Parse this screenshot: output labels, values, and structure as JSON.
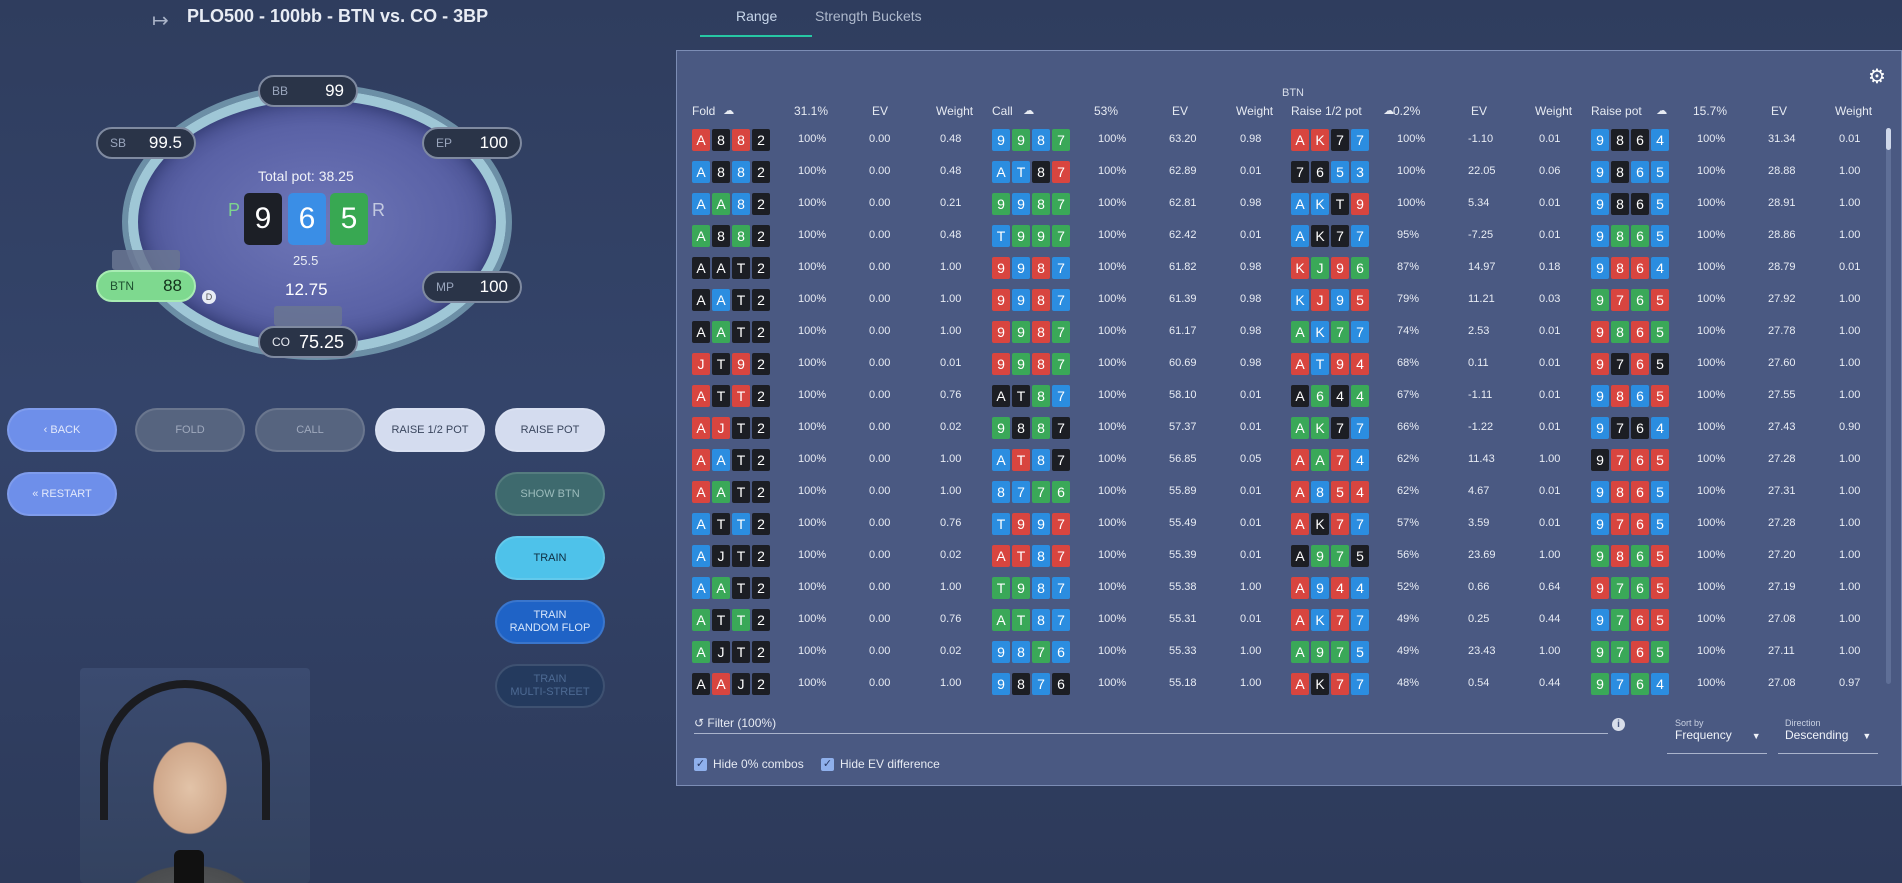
{
  "header": {
    "title": "PLO500 - 100bb - BTN vs. CO - 3BP",
    "icon": "enter-icon"
  },
  "tabs": [
    {
      "label": "Range"
    },
    {
      "label": "Strength Buckets"
    }
  ],
  "table": {
    "seats": {
      "bb": {
        "pos": "BB",
        "stack": "99"
      },
      "sb": {
        "pos": "SB",
        "stack": "99.5"
      },
      "ep": {
        "pos": "EP",
        "stack": "100"
      },
      "mp": {
        "pos": "MP",
        "stack": "100"
      },
      "co": {
        "pos": "CO",
        "stack": "75.25"
      },
      "btn": {
        "pos": "BTN",
        "stack": "88"
      }
    },
    "pot_label": "Total pot: 38.25",
    "board": [
      "9",
      "6",
      "5"
    ],
    "board_suits": [
      "d",
      "h",
      "c"
    ],
    "side_p": "P",
    "side_r": "R",
    "btn_bet": "25.5",
    "co_bet": "12.75",
    "dealer": "D"
  },
  "buttons": {
    "back": "BACK",
    "restart": "RESTART",
    "fold": "FOLD",
    "call": "CALL",
    "raise_half": "RAISE 1/2 POT",
    "raise_pot": "RAISE POT",
    "show_btn": "SHOW BTN",
    "train": "TRAIN",
    "train_random_1": "TRAIN",
    "train_random_2": "RANDOM FLOP",
    "train_multi_1": "TRAIN",
    "train_multi_2": "MULTI-STREET"
  },
  "range": {
    "player": "BTN",
    "colors": {
      "s": "#d8453f",
      "h": "#2b8de0",
      "c": "#3aa858",
      "d": "#1c1e24"
    },
    "groups": [
      {
        "name": "Fold",
        "pct": "31.1%",
        "ev_label": "EV",
        "weight_label": "Weight",
        "rows": [
          {
            "cards": [
              "As",
              "8d",
              "8s",
              "2d"
            ],
            "freq": "100%",
            "ev": "0.00",
            "weight": "0.48"
          },
          {
            "cards": [
              "Ah",
              "8d",
              "8h",
              "2d"
            ],
            "freq": "100%",
            "ev": "0.00",
            "weight": "0.48"
          },
          {
            "cards": [
              "Ah",
              "Ac",
              "8h",
              "2d"
            ],
            "freq": "100%",
            "ev": "0.00",
            "weight": "0.21"
          },
          {
            "cards": [
              "Ac",
              "8d",
              "8c",
              "2d"
            ],
            "freq": "100%",
            "ev": "0.00",
            "weight": "0.48"
          },
          {
            "cards": [
              "Ad",
              "Ad",
              "Td",
              "2d"
            ],
            "freq": "100%",
            "ev": "0.00",
            "weight": "1.00"
          },
          {
            "cards": [
              "Ad",
              "Ah",
              "Td",
              "2d"
            ],
            "freq": "100%",
            "ev": "0.00",
            "weight": "1.00"
          },
          {
            "cards": [
              "Ad",
              "Ac",
              "Td",
              "2d"
            ],
            "freq": "100%",
            "ev": "0.00",
            "weight": "1.00"
          },
          {
            "cards": [
              "Js",
              "Td",
              "9s",
              "2d"
            ],
            "freq": "100%",
            "ev": "0.00",
            "weight": "0.01"
          },
          {
            "cards": [
              "As",
              "Td",
              "Ts",
              "2d"
            ],
            "freq": "100%",
            "ev": "0.00",
            "weight": "0.76"
          },
          {
            "cards": [
              "As",
              "Js",
              "Td",
              "2d"
            ],
            "freq": "100%",
            "ev": "0.00",
            "weight": "0.02"
          },
          {
            "cards": [
              "As",
              "Ah",
              "Td",
              "2d"
            ],
            "freq": "100%",
            "ev": "0.00",
            "weight": "1.00"
          },
          {
            "cards": [
              "As",
              "Ac",
              "Td",
              "2d"
            ],
            "freq": "100%",
            "ev": "0.00",
            "weight": "1.00"
          },
          {
            "cards": [
              "Ah",
              "Td",
              "Th",
              "2d"
            ],
            "freq": "100%",
            "ev": "0.00",
            "weight": "0.76"
          },
          {
            "cards": [
              "Ah",
              "Jd",
              "Td",
              "2d"
            ],
            "freq": "100%",
            "ev": "0.00",
            "weight": "0.02"
          },
          {
            "cards": [
              "Ah",
              "Ac",
              "Td",
              "2d"
            ],
            "freq": "100%",
            "ev": "0.00",
            "weight": "1.00"
          },
          {
            "cards": [
              "Ac",
              "Td",
              "Tc",
              "2d"
            ],
            "freq": "100%",
            "ev": "0.00",
            "weight": "0.76"
          },
          {
            "cards": [
              "Ac",
              "Jd",
              "Td",
              "2d"
            ],
            "freq": "100%",
            "ev": "0.00",
            "weight": "0.02"
          },
          {
            "cards": [
              "Ad",
              "As",
              "Jd",
              "2d"
            ],
            "freq": "100%",
            "ev": "0.00",
            "weight": "1.00"
          }
        ]
      },
      {
        "name": "Call",
        "pct": "53%",
        "ev_label": "EV",
        "weight_label": "Weight",
        "rows": [
          {
            "cards": [
              "9h",
              "9c",
              "8h",
              "7c"
            ],
            "freq": "100%",
            "ev": "63.20",
            "weight": "0.98"
          },
          {
            "cards": [
              "Ah",
              "Th",
              "8d",
              "7s"
            ],
            "freq": "100%",
            "ev": "62.89",
            "weight": "0.01"
          },
          {
            "cards": [
              "9c",
              "9h",
              "8c",
              "7c"
            ],
            "freq": "100%",
            "ev": "62.81",
            "weight": "0.98"
          },
          {
            "cards": [
              "Th",
              "9c",
              "9c",
              "7c"
            ],
            "freq": "100%",
            "ev": "62.42",
            "weight": "0.01"
          },
          {
            "cards": [
              "9s",
              "9h",
              "8s",
              "7h"
            ],
            "freq": "100%",
            "ev": "61.82",
            "weight": "0.98"
          },
          {
            "cards": [
              "9s",
              "9h",
              "8s",
              "7h"
            ],
            "freq": "100%",
            "ev": "61.39",
            "weight": "0.98"
          },
          {
            "cards": [
              "9s",
              "9c",
              "8s",
              "7c"
            ],
            "freq": "100%",
            "ev": "61.17",
            "weight": "0.98"
          },
          {
            "cards": [
              "9s",
              "9c",
              "8s",
              "7c"
            ],
            "freq": "100%",
            "ev": "60.69",
            "weight": "0.98"
          },
          {
            "cards": [
              "Ad",
              "Td",
              "8c",
              "7h"
            ],
            "freq": "100%",
            "ev": "58.10",
            "weight": "0.01"
          },
          {
            "cards": [
              "9c",
              "8d",
              "8c",
              "7d"
            ],
            "freq": "100%",
            "ev": "57.37",
            "weight": "0.01"
          },
          {
            "cards": [
              "Ah",
              "Ts",
              "8h",
              "7d"
            ],
            "freq": "100%",
            "ev": "56.85",
            "weight": "0.05"
          },
          {
            "cards": [
              "8h",
              "7h",
              "7c",
              "6c"
            ],
            "freq": "100%",
            "ev": "55.89",
            "weight": "0.01"
          },
          {
            "cards": [
              "Th",
              "9s",
              "9h",
              "7s"
            ],
            "freq": "100%",
            "ev": "55.49",
            "weight": "0.01"
          },
          {
            "cards": [
              "As",
              "Ts",
              "8h",
              "7s"
            ],
            "freq": "100%",
            "ev": "55.39",
            "weight": "0.01"
          },
          {
            "cards": [
              "Tc",
              "9c",
              "8h",
              "7h"
            ],
            "freq": "100%",
            "ev": "55.38",
            "weight": "1.00"
          },
          {
            "cards": [
              "Ac",
              "Tc",
              "8h",
              "7h"
            ],
            "freq": "100%",
            "ev": "55.31",
            "weight": "0.01"
          },
          {
            "cards": [
              "9h",
              "8h",
              "7c",
              "6h"
            ],
            "freq": "100%",
            "ev": "55.33",
            "weight": "1.00"
          },
          {
            "cards": [
              "9h",
              "8d",
              "7h",
              "6d"
            ],
            "freq": "100%",
            "ev": "55.18",
            "weight": "1.00"
          }
        ]
      },
      {
        "name": "Raise 1/2 pot",
        "pct": "0.2%",
        "ev_label": "EV",
        "weight_label": "Weight",
        "rows": [
          {
            "cards": [
              "As",
              "Ks",
              "7d",
              "7h"
            ],
            "freq": "100%",
            "ev": "-1.10",
            "weight": "0.01"
          },
          {
            "cards": [
              "7d",
              "6d",
              "5h",
              "3h"
            ],
            "freq": "100%",
            "ev": "22.05",
            "weight": "0.06"
          },
          {
            "cards": [
              "Ah",
              "Kh",
              "Td",
              "9s"
            ],
            "freq": "100%",
            "ev": "5.34",
            "weight": "0.01"
          },
          {
            "cards": [
              "Ah",
              "Kd",
              "7d",
              "7h"
            ],
            "freq": "95%",
            "ev": "-7.25",
            "weight": "0.01"
          },
          {
            "cards": [
              "Ks",
              "Jc",
              "9s",
              "6c"
            ],
            "freq": "87%",
            "ev": "14.97",
            "weight": "0.18"
          },
          {
            "cards": [
              "Kh",
              "Js",
              "9h",
              "5s"
            ],
            "freq": "79%",
            "ev": "11.21",
            "weight": "0.03"
          },
          {
            "cards": [
              "Ac",
              "Kh",
              "7c",
              "7h"
            ],
            "freq": "74%",
            "ev": "2.53",
            "weight": "0.01"
          },
          {
            "cards": [
              "As",
              "Th",
              "9s",
              "4s"
            ],
            "freq": "68%",
            "ev": "0.11",
            "weight": "0.01"
          },
          {
            "cards": [
              "Ad",
              "6c",
              "4d",
              "4c"
            ],
            "freq": "67%",
            "ev": "-1.11",
            "weight": "0.01"
          },
          {
            "cards": [
              "Ac",
              "Kc",
              "7d",
              "7h"
            ],
            "freq": "66%",
            "ev": "-1.22",
            "weight": "0.01"
          },
          {
            "cards": [
              "As",
              "Ac",
              "7s",
              "4h"
            ],
            "freq": "62%",
            "ev": "11.43",
            "weight": "1.00"
          },
          {
            "cards": [
              "As",
              "8h",
              "5s",
              "4s"
            ],
            "freq": "62%",
            "ev": "4.67",
            "weight": "0.01"
          },
          {
            "cards": [
              "As",
              "Kd",
              "7s",
              "7h"
            ],
            "freq": "57%",
            "ev": "3.59",
            "weight": "0.01"
          },
          {
            "cards": [
              "Ad",
              "9c",
              "7c",
              "5d"
            ],
            "freq": "56%",
            "ev": "23.69",
            "weight": "1.00"
          },
          {
            "cards": [
              "As",
              "9h",
              "4s",
              "4h"
            ],
            "freq": "52%",
            "ev": "0.66",
            "weight": "0.64"
          },
          {
            "cards": [
              "As",
              "Kh",
              "7s",
              "7h"
            ],
            "freq": "49%",
            "ev": "0.25",
            "weight": "0.44"
          },
          {
            "cards": [
              "Ac",
              "9c",
              "7c",
              "5h"
            ],
            "freq": "49%",
            "ev": "23.43",
            "weight": "1.00"
          },
          {
            "cards": [
              "As",
              "Kd",
              "7s",
              "7h"
            ],
            "freq": "48%",
            "ev": "0.54",
            "weight": "0.44"
          }
        ]
      },
      {
        "name": "Raise pot",
        "pct": "15.7%",
        "ev_label": "EV",
        "weight_label": "Weight",
        "rows": [
          {
            "cards": [
              "9h",
              "8d",
              "6d",
              "4h"
            ],
            "freq": "100%",
            "ev": "31.34",
            "weight": "0.01"
          },
          {
            "cards": [
              "9h",
              "8d",
              "6h",
              "5h"
            ],
            "freq": "100%",
            "ev": "28.88",
            "weight": "1.00"
          },
          {
            "cards": [
              "9h",
              "8d",
              "6d",
              "5h"
            ],
            "freq": "100%",
            "ev": "28.91",
            "weight": "1.00"
          },
          {
            "cards": [
              "9h",
              "8c",
              "6c",
              "5h"
            ],
            "freq": "100%",
            "ev": "28.86",
            "weight": "1.00"
          },
          {
            "cards": [
              "9h",
              "8s",
              "6s",
              "4h"
            ],
            "freq": "100%",
            "ev": "28.79",
            "weight": "0.01"
          },
          {
            "cards": [
              "9c",
              "7s",
              "6c",
              "5s"
            ],
            "freq": "100%",
            "ev": "27.92",
            "weight": "1.00"
          },
          {
            "cards": [
              "9s",
              "8c",
              "6s",
              "5c"
            ],
            "freq": "100%",
            "ev": "27.78",
            "weight": "1.00"
          },
          {
            "cards": [
              "9s",
              "7d",
              "6s",
              "5d"
            ],
            "freq": "100%",
            "ev": "27.60",
            "weight": "1.00"
          },
          {
            "cards": [
              "9h",
              "8s",
              "6h",
              "5s"
            ],
            "freq": "100%",
            "ev": "27.55",
            "weight": "1.00"
          },
          {
            "cards": [
              "9h",
              "7d",
              "6d",
              "4h"
            ],
            "freq": "100%",
            "ev": "27.43",
            "weight": "0.90"
          },
          {
            "cards": [
              "9d",
              "7s",
              "6s",
              "5s"
            ],
            "freq": "100%",
            "ev": "27.28",
            "weight": "1.00"
          },
          {
            "cards": [
              "9h",
              "8s",
              "6s",
              "5h"
            ],
            "freq": "100%",
            "ev": "27.31",
            "weight": "1.00"
          },
          {
            "cards": [
              "9h",
              "7s",
              "6s",
              "5h"
            ],
            "freq": "100%",
            "ev": "27.28",
            "weight": "1.00"
          },
          {
            "cards": [
              "9c",
              "8s",
              "6c",
              "5s"
            ],
            "freq": "100%",
            "ev": "27.20",
            "weight": "1.00"
          },
          {
            "cards": [
              "9s",
              "7c",
              "6c",
              "5s"
            ],
            "freq": "100%",
            "ev": "27.19",
            "weight": "1.00"
          },
          {
            "cards": [
              "9h",
              "7c",
              "6s",
              "5s"
            ],
            "freq": "100%",
            "ev": "27.08",
            "weight": "1.00"
          },
          {
            "cards": [
              "9c",
              "7c",
              "6s",
              "5c"
            ],
            "freq": "100%",
            "ev": "27.11",
            "weight": "1.00"
          },
          {
            "cards": [
              "9c",
              "7h",
              "6c",
              "4h"
            ],
            "freq": "100%",
            "ev": "27.08",
            "weight": "0.97"
          }
        ]
      }
    ]
  },
  "filter": {
    "label": "Filter (100%)",
    "icon": "history-icon",
    "info_icon": "info-icon"
  },
  "sort": {
    "label": "Sort by",
    "value": "Frequency"
  },
  "direction": {
    "label": "Direction",
    "value": "Descending"
  },
  "checks": [
    {
      "label": "Hide 0% combos",
      "checked": true
    },
    {
      "label": "Hide EV difference",
      "checked": true
    }
  ]
}
